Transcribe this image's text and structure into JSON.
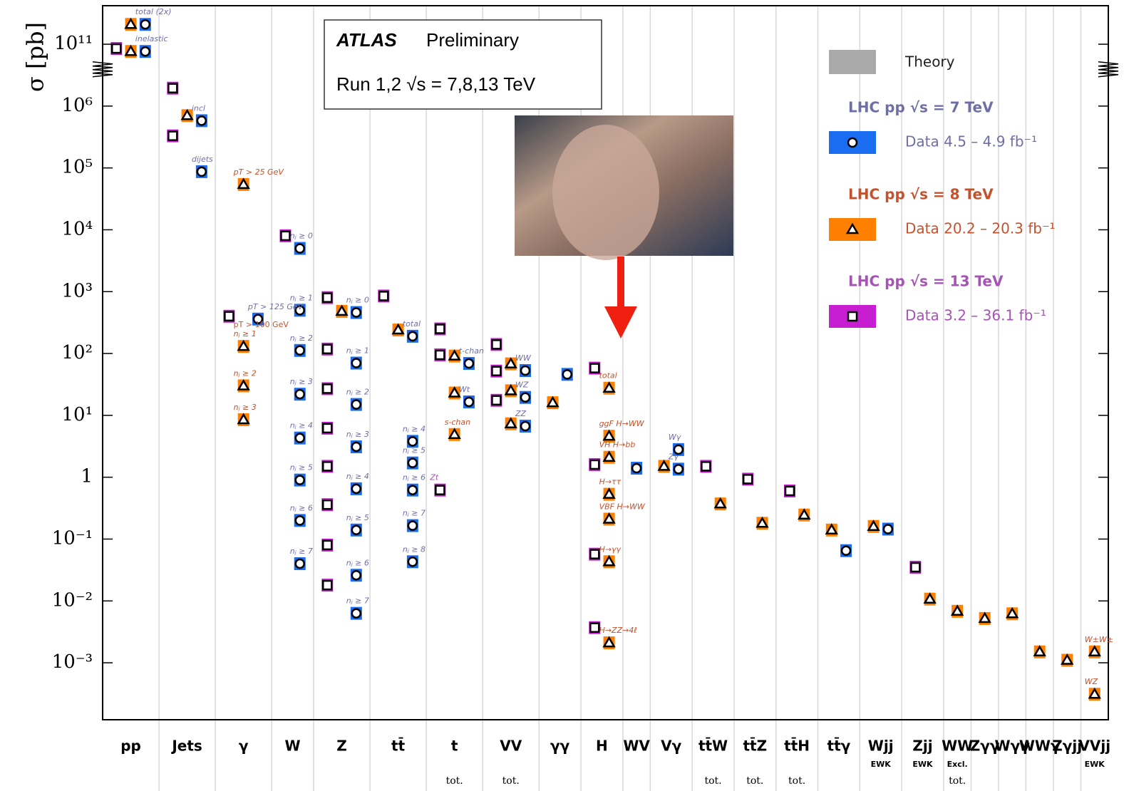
{
  "chart_data": {
    "type": "xsec-summary",
    "title": "ATLAS",
    "subtitle": "Preliminary",
    "annotation": "Run 1,2  √s = 7,8,13 TeV",
    "ylabel": "σ [pb]",
    "log_scale": true,
    "axis_break": true,
    "ylim": [
      0.00012,
      130000000000000.0
    ],
    "yticks": [
      {
        "value": 0.001,
        "label": "10⁻³"
      },
      {
        "value": 0.01,
        "label": "10⁻²"
      },
      {
        "value": 0.1,
        "label": "10⁻¹"
      },
      1,
      {
        "value": 10,
        "label": "10¹"
      },
      {
        "value": 100,
        "label": "10²"
      },
      {
        "value": 1000,
        "label": "10³"
      },
      {
        "value": 10000,
        "label": "10⁴"
      },
      {
        "value": 100000,
        "label": "10⁵"
      },
      {
        "value": 1000000,
        "label": "10⁶"
      },
      {
        "value": 100000000000,
        "label": "10¹¹"
      }
    ],
    "theory_label": "Theory",
    "theory_color": "#aaaaaa",
    "series": [
      {
        "name": "LHC pp  √s = 7 TeV",
        "data_label": "Data  4.5 – 4.9 fb⁻¹",
        "color": "#1a6cf0",
        "text_color": "#6f6fa6",
        "marker": "circle"
      },
      {
        "name": "LHC pp  √s = 8 TeV",
        "data_label": "Data  20.2 – 20.3 fb⁻¹",
        "color": "#ff8000",
        "text_color": "#c4522c",
        "marker": "triangle"
      },
      {
        "name": "LHC pp  √s = 13 TeV",
        "data_label": "Data  3.2 – 36.1 fb⁻¹",
        "color": "#c81ed2",
        "text_color": "#a554b4",
        "marker": "square"
      }
    ],
    "groups": [
      {
        "name": "pp",
        "items": [
          {
            "label": "total (2x)",
            "values": [
              4000000000000.0,
              4000000000000.0,
              null
            ]
          },
          {
            "label": "inelastic",
            "values": [
              26000000000.0,
              26000000000.0,
              45000000000.0
            ]
          }
        ]
      },
      {
        "name": "Jets",
        "items": [
          {
            "label": "incl",
            "values": [
              580000,
              700000,
              28000000
            ]
          },
          {
            "label": "dijets",
            "values": [
              87000,
              null,
              330000
            ]
          }
        ]
      },
      {
        "name": "γ",
        "items": [
          {
            "label": "pT > 25 GeV",
            "values": [
              null,
              54000,
              null
            ]
          },
          {
            "label": "pT > 125 GeV",
            "values": [
              360,
              null,
              400
            ]
          },
          {
            "label": "nⱼ ≥ 1",
            "note": "pT > 100 GeV",
            "values": [
              null,
              130,
              null
            ]
          },
          {
            "label": "nⱼ ≥ 2",
            "values": [
              null,
              30,
              null
            ]
          },
          {
            "label": "nⱼ ≥ 3",
            "values": [
              null,
              8.5,
              null
            ]
          }
        ]
      },
      {
        "name": "W",
        "items": [
          {
            "label": "nⱼ ≥ 0",
            "values": [
              5000,
              null,
              8000
            ]
          },
          {
            "label": "nⱼ ≥ 1",
            "values": [
              500,
              null,
              null
            ]
          },
          {
            "label": "nⱼ ≥ 2",
            "values": [
              112,
              null,
              null
            ]
          },
          {
            "label": "nⱼ ≥ 3",
            "values": [
              22,
              null,
              null
            ]
          },
          {
            "label": "nⱼ ≥ 4",
            "values": [
              4.3,
              null,
              null
            ]
          },
          {
            "label": "nⱼ ≥ 5",
            "values": [
              0.9,
              null,
              null
            ]
          },
          {
            "label": "nⱼ ≥ 6",
            "values": [
              0.2,
              null,
              null
            ]
          },
          {
            "label": "nⱼ ≥ 7",
            "values": [
              0.04,
              null,
              null
            ]
          }
        ]
      },
      {
        "name": "Z",
        "items": [
          {
            "label": "nⱼ ≥ 0",
            "values": [
              460,
              480,
              800
            ]
          },
          {
            "label": "nⱼ ≥ 1",
            "values": [
              70,
              null,
              118
            ]
          },
          {
            "label": "nⱼ ≥ 2",
            "values": [
              15,
              null,
              27
            ]
          },
          {
            "label": "nⱼ ≥ 3",
            "values": [
              3.1,
              null,
              6.2
            ]
          },
          {
            "label": "nⱼ ≥ 4",
            "values": [
              0.65,
              null,
              1.5
            ]
          },
          {
            "label": "nⱼ ≥ 5",
            "values": [
              0.14,
              null,
              0.36
            ]
          },
          {
            "label": "nⱼ ≥ 6",
            "values": [
              0.026,
              null,
              0.08
            ]
          },
          {
            "label": "nⱼ ≥ 7",
            "values": [
              0.0063,
              null,
              0.018
            ]
          }
        ]
      },
      {
        "name": "tt̄",
        "items": [
          {
            "label": "total",
            "values": [
              190,
              240,
              850
            ]
          },
          {
            "label": "nⱼ ≥ 4",
            "values": [
              3.8,
              null,
              null
            ]
          },
          {
            "label": "nⱼ ≥ 5",
            "values": [
              1.7,
              null,
              null
            ]
          },
          {
            "label": "nⱼ ≥ 6",
            "values": [
              0.62,
              null,
              null
            ]
          },
          {
            "label": "nⱼ ≥ 7",
            "values": [
              0.165,
              null,
              null
            ]
          },
          {
            "label": "nⱼ ≥ 8",
            "values": [
              0.043,
              null,
              null
            ]
          }
        ]
      },
      {
        "name": "t",
        "tot": "tot.",
        "items": [
          {
            "label": "t-chan",
            "values": [
              69,
              91,
              250
            ]
          },
          {
            "label": "Wt",
            "values": [
              16.5,
              23,
              95
            ]
          },
          {
            "label": "s-chan",
            "values": [
              null,
              4.9,
              null
            ]
          },
          {
            "label": "Zt",
            "values": [
              null,
              null,
              0.62
            ]
          }
        ]
      },
      {
        "name": "VV",
        "tot": "tot.",
        "items": [
          {
            "label": "WW",
            "values": [
              53,
              68,
              140
            ]
          },
          {
            "label": "WZ",
            "values": [
              19.5,
              25,
              52
            ]
          },
          {
            "label": "ZZ",
            "values": [
              6.7,
              7.3,
              17.5
            ]
          }
        ]
      },
      {
        "name": "γγ",
        "items": [
          {
            "values": [
              46,
              16,
              null
            ]
          }
        ]
      },
      {
        "name": "H",
        "items": [
          {
            "label": "total",
            "values": [
              null,
              27.5,
              58
            ]
          },
          {
            "label": "ggF H→WW",
            "values": [
              null,
              4.6,
              null
            ]
          },
          {
            "label": "VH H→bb",
            "values": [
              null,
              2.1,
              1.6
            ]
          },
          {
            "label": "H→ττ",
            "values": [
              null,
              0.53,
              null
            ]
          },
          {
            "label": "VBF H→WW",
            "values": [
              null,
              0.21,
              null
            ]
          },
          {
            "label": "H→γγ",
            "values": [
              null,
              0.043,
              0.057
            ]
          },
          {
            "label": "H→ZZ→4ℓ",
            "values": [
              null,
              0.0021,
              0.0037
            ]
          }
        ]
      },
      {
        "name": "WV",
        "items": [
          {
            "values": [
              1.4,
              null,
              null
            ]
          }
        ]
      },
      {
        "name": "Vγ",
        "items": [
          {
            "label": "Wγ",
            "values": [
              2.8,
              null,
              null
            ]
          },
          {
            "label": "Zγ",
            "values": [
              1.35,
              1.5,
              null
            ]
          }
        ]
      },
      {
        "name": "tt̄W",
        "tot": "tot.",
        "items": [
          {
            "values": [
              null,
              0.37,
              1.5
            ]
          }
        ]
      },
      {
        "name": "tt̄Z",
        "tot": "tot.",
        "items": [
          {
            "values": [
              null,
              0.18,
              0.93
            ]
          }
        ]
      },
      {
        "name": "tt̄H",
        "tot": "tot.",
        "items": [
          {
            "values": [
              null,
              0.245,
              0.6
            ]
          }
        ]
      },
      {
        "name": "tt̄γ",
        "items": [
          {
            "values": [
              0.065,
              0.14,
              null
            ]
          }
        ]
      },
      {
        "name": "Wjj",
        "sub": "EWK",
        "items": [
          {
            "values": [
              0.145,
              0.16,
              null
            ]
          }
        ]
      },
      {
        "name": "Zjj",
        "sub": "EWK",
        "items": [
          {
            "values": [
              null,
              0.0107,
              0.035
            ]
          }
        ]
      },
      {
        "name": "WW",
        "sub": "Excl.",
        "tot": "tot.",
        "items": [
          {
            "values": [
              null,
              0.0068,
              null
            ]
          }
        ]
      },
      {
        "name": "Zγγ",
        "items": [
          {
            "values": [
              null,
              0.0052,
              null
            ]
          }
        ]
      },
      {
        "name": "Wγγ",
        "items": [
          {
            "values": [
              null,
              0.0062,
              null
            ]
          }
        ]
      },
      {
        "name": "WWγ",
        "items": [
          {
            "values": [
              null,
              0.0015,
              null
            ]
          }
        ]
      },
      {
        "name": "Zγjj",
        "items": [
          {
            "values": [
              null,
              0.0011,
              null
            ]
          }
        ]
      },
      {
        "name": "VVjj",
        "sub": "EWK",
        "items": [
          {
            "label": "W±W±",
            "values": [
              null,
              0.0015,
              null
            ]
          },
          {
            "label": "WZ",
            "values": [
              null,
              0.00031,
              null
            ]
          }
        ]
      }
    ]
  }
}
